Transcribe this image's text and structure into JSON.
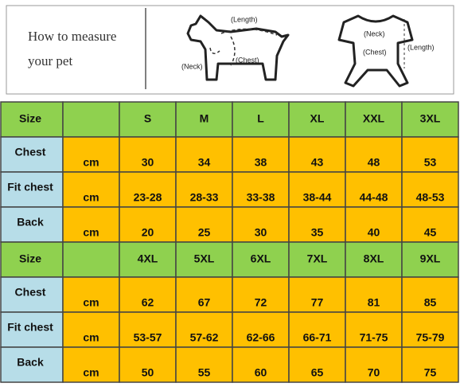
{
  "header": {
    "lines": [
      "How to measure",
      "your pet"
    ],
    "dog_labels": [
      "(Length)",
      "(Neck)",
      "(Chest)"
    ],
    "shirt_labels": [
      "(Neck)",
      "(Chest)",
      "(Length)"
    ]
  },
  "table": {
    "rows": [
      {
        "label": "Size",
        "cells": [
          "S",
          "M",
          "L",
          "XL",
          "XXL",
          "3XL"
        ]
      },
      {
        "label": "Chest",
        "unit": "cm",
        "cells": [
          "30",
          "34",
          "38",
          "43",
          "48",
          "53"
        ]
      },
      {
        "label": "Fit chest",
        "unit": "cm",
        "cells": [
          "23-28",
          "28-33",
          "33-38",
          "38-44",
          "44-48",
          "48-53"
        ]
      },
      {
        "label": "Back",
        "unit": "cm",
        "cells": [
          "20",
          "25",
          "30",
          "35",
          "40",
          "45"
        ]
      },
      {
        "label": "Size",
        "cells": [
          "4XL",
          "5XL",
          "6XL",
          "7XL",
          "8XL",
          "9XL"
        ]
      },
      {
        "label": "Chest",
        "unit": "cm",
        "cells": [
          "62",
          "67",
          "72",
          "77",
          "81",
          "85"
        ]
      },
      {
        "label": "Fit chest",
        "unit": "cm",
        "cells": [
          "53-57",
          "57-62",
          "62-66",
          "66-71",
          "71-75",
          "75-79"
        ]
      },
      {
        "label": "Back",
        "unit": "cm",
        "cells": [
          "50",
          "55",
          "60",
          "65",
          "70",
          "75"
        ]
      }
    ]
  }
}
